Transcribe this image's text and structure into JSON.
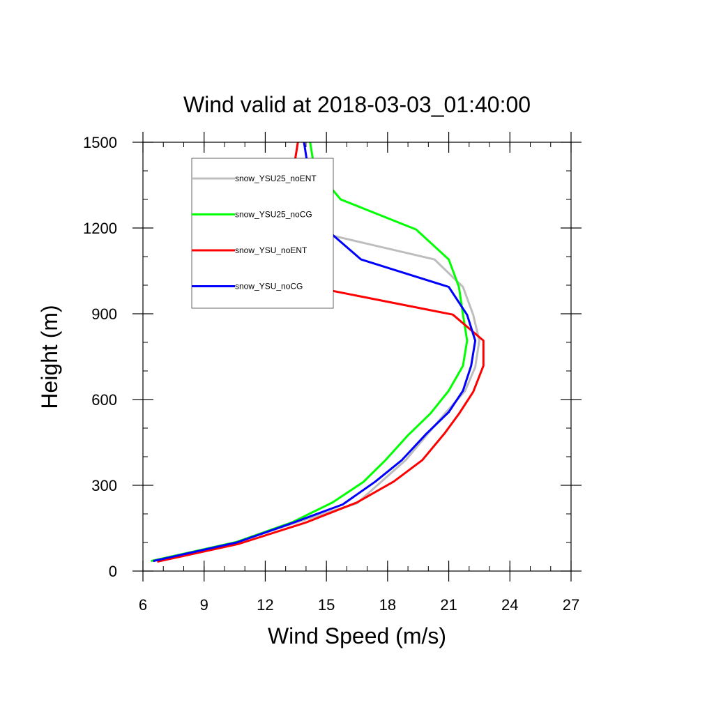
{
  "chart_data": {
    "type": "line",
    "title": "Wind valid at 2018-03-03_01:40:00",
    "xlabel": "Wind Speed (m/s)",
    "ylabel": "Height (m)",
    "xlim": [
      6,
      27
    ],
    "ylim": [
      0,
      1500
    ],
    "xticks": [
      6,
      9,
      12,
      15,
      18,
      21,
      24,
      27
    ],
    "yticks": [
      0,
      300,
      600,
      900,
      1200,
      1500
    ],
    "grid": false,
    "legend_position": "top-left",
    "series": [
      {
        "name": "snow_YSU25_noENT",
        "color": "#bdbdbd",
        "points": [
          [
            6.5,
            35
          ],
          [
            10.5,
            98
          ],
          [
            13.3,
            165
          ],
          [
            16.5,
            237
          ],
          [
            18.9,
            389
          ],
          [
            20.8,
            550
          ],
          [
            21.8,
            630
          ],
          [
            22.3,
            714
          ],
          [
            22.5,
            806
          ],
          [
            22.2,
            896
          ],
          [
            21.7,
            994
          ],
          [
            20.3,
            1090
          ],
          [
            14.0,
            1195
          ],
          [
            13.5,
            1296
          ],
          [
            13.4,
            1410
          ],
          [
            13.6,
            1500
          ]
        ]
      },
      {
        "name": "snow_YSU25_noCG",
        "color": "#00ff00",
        "points": [
          [
            6.4,
            35
          ],
          [
            10.6,
            102
          ],
          [
            13.3,
            170
          ],
          [
            15.3,
            240
          ],
          [
            16.8,
            311
          ],
          [
            17.9,
            388
          ],
          [
            19.0,
            475
          ],
          [
            20.1,
            551
          ],
          [
            21.0,
            631
          ],
          [
            21.7,
            718
          ],
          [
            21.9,
            806
          ],
          [
            21.7,
            897
          ],
          [
            21.5,
            994
          ],
          [
            21.0,
            1090
          ],
          [
            19.4,
            1195
          ],
          [
            15.7,
            1300
          ],
          [
            14.4,
            1410
          ],
          [
            14.2,
            1500
          ]
        ]
      },
      {
        "name": "snow_YSU_noENT",
        "color": "#ff0000",
        "points": [
          [
            6.7,
            33
          ],
          [
            10.7,
            95
          ],
          [
            14.0,
            170
          ],
          [
            16.5,
            240
          ],
          [
            18.3,
            313
          ],
          [
            19.7,
            388
          ],
          [
            20.8,
            482
          ],
          [
            21.5,
            550
          ],
          [
            22.2,
            627
          ],
          [
            22.7,
            718
          ],
          [
            22.7,
            806
          ],
          [
            21.2,
            897
          ],
          [
            14.6,
            990
          ],
          [
            13.8,
            1100
          ],
          [
            13.0,
            1195
          ],
          [
            13.1,
            1300
          ],
          [
            13.4,
            1410
          ],
          [
            13.6,
            1500
          ]
        ]
      },
      {
        "name": "snow_YSU_noCG",
        "color": "#0000ff",
        "points": [
          [
            6.5,
            35
          ],
          [
            10.6,
            100
          ],
          [
            13.2,
            165
          ],
          [
            15.8,
            233
          ],
          [
            17.4,
            313
          ],
          [
            18.7,
            388
          ],
          [
            19.9,
            480
          ],
          [
            21.0,
            556
          ],
          [
            21.7,
            631
          ],
          [
            22.1,
            718
          ],
          [
            22.3,
            806
          ],
          [
            21.9,
            896
          ],
          [
            21.0,
            994
          ],
          [
            16.7,
            1090
          ],
          [
            15.0,
            1195
          ],
          [
            14.3,
            1300
          ],
          [
            14.1,
            1410
          ],
          [
            13.9,
            1500
          ]
        ]
      }
    ]
  }
}
